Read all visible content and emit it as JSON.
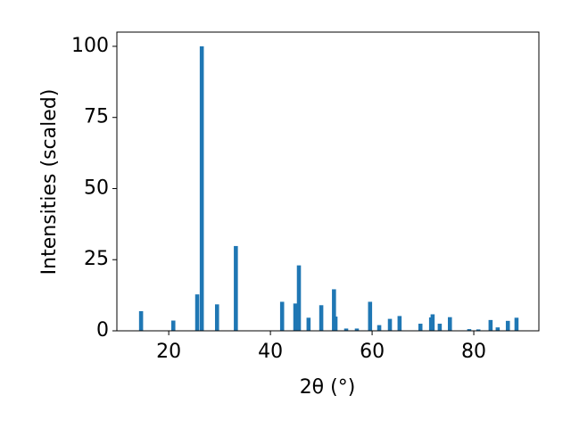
{
  "chart_data": {
    "type": "bar",
    "xlabel": "2θ (°)",
    "ylabel": "Intensities (scaled)",
    "x": [
      14.56,
      20.9,
      25.6,
      26.5,
      29.5,
      33.2,
      42.3,
      44.9,
      45.6,
      47.5,
      50.0,
      52.5,
      52.8,
      54.9,
      57.0,
      59.6,
      61.4,
      63.5,
      65.4,
      69.5,
      71.6,
      71.9,
      73.3,
      75.3,
      79.1,
      80.9,
      83.3,
      84.7,
      86.7,
      88.4
    ],
    "values": [
      6.9,
      3.6,
      12.8,
      100,
      9.3,
      29.8,
      10.2,
      9.6,
      23,
      4.6,
      9.0,
      14.6,
      5.0,
      0.8,
      0.8,
      10.2,
      2.0,
      4.2,
      5.2,
      2.5,
      4.7,
      5.8,
      2.5,
      4.8,
      0.6,
      0.5,
      3.8,
      1.2,
      3.5,
      4.6
    ],
    "color": "#1f77b4",
    "xlim": [
      9.8,
      92.8
    ],
    "xticks": [
      20,
      40,
      60,
      80
    ],
    "ylim": [
      0,
      105
    ],
    "yticks": [
      0,
      25,
      50,
      75,
      100
    ]
  }
}
